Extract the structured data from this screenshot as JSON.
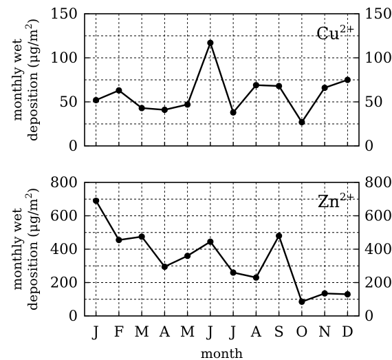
{
  "chart_data": [
    {
      "type": "line",
      "panel_label": {
        "element": "Cu",
        "charge": "2+"
      },
      "ylabel_lines": [
        "monthly wet",
        "deposition (μg/m",
        "2",
        ")"
      ],
      "xlabel": "",
      "categories": [
        "J",
        "F",
        "M",
        "A",
        "M",
        "J",
        "J",
        "A",
        "S",
        "O",
        "N",
        "D"
      ],
      "values": [
        52,
        63,
        43,
        41,
        47,
        117,
        38,
        69,
        68,
        27,
        66,
        75
      ],
      "ylim": [
        0,
        150
      ],
      "y_ticks": [
        0,
        50,
        100,
        150
      ],
      "y_grid": [
        25,
        50,
        75,
        100,
        125
      ],
      "grid": true,
      "show_x_tick_labels": false
    },
    {
      "type": "line",
      "panel_label": {
        "element": "Zn",
        "charge": "2+"
      },
      "ylabel_lines": [
        "monthly wet",
        "deposition (μg/m",
        "2",
        ")"
      ],
      "xlabel": "month",
      "categories": [
        "J",
        "F",
        "M",
        "A",
        "M",
        "J",
        "J",
        "A",
        "S",
        "O",
        "N",
        "D"
      ],
      "values": [
        690,
        455,
        475,
        295,
        360,
        445,
        260,
        230,
        480,
        85,
        135,
        130
      ],
      "ylim": [
        0,
        800
      ],
      "y_ticks": [
        0,
        200,
        400,
        600,
        800
      ],
      "y_grid": [
        100,
        200,
        300,
        400,
        500,
        600,
        700
      ],
      "grid": true,
      "show_x_tick_labels": true
    }
  ]
}
